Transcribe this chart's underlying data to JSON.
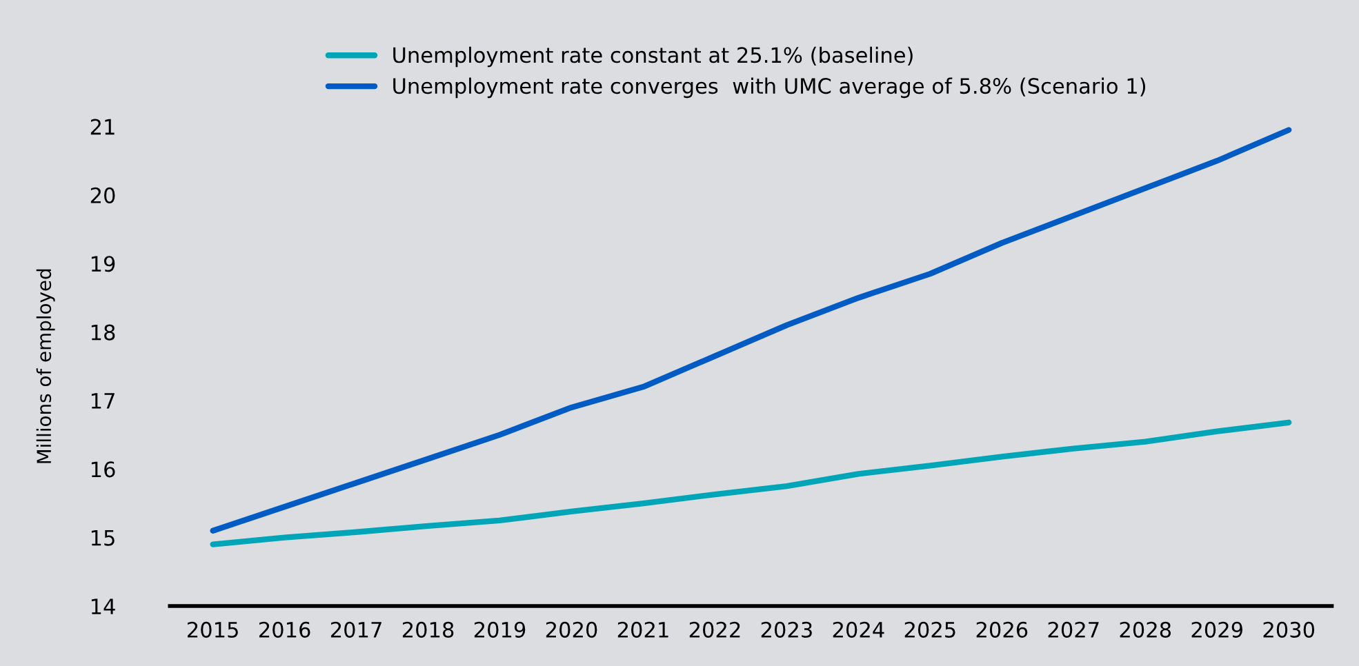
{
  "chart_data": {
    "type": "line",
    "ylabel": "Millions of employed",
    "categories": [
      "2015",
      "2016",
      "2017",
      "2018",
      "2019",
      "2020",
      "2021",
      "2022",
      "2023",
      "2024",
      "2025",
      "2026",
      "2027",
      "2028",
      "2029",
      "2030"
    ],
    "series": [
      {
        "name": "Unemployment rate constant at 25.1% (baseline)",
        "color": "#00a6b8",
        "values": [
          14.9,
          15.0,
          15.08,
          15.17,
          15.25,
          15.38,
          15.5,
          15.63,
          15.75,
          15.93,
          16.05,
          16.18,
          16.3,
          16.4,
          16.55,
          16.68
        ]
      },
      {
        "name": "Unemployment rate converges  with UMC average of 5.8% (Scenario 1)",
        "color": "#005cc4",
        "values": [
          15.1,
          15.45,
          15.8,
          16.15,
          16.5,
          16.9,
          17.2,
          17.65,
          18.1,
          18.5,
          18.85,
          19.3,
          19.7,
          20.1,
          20.5,
          20.95
        ]
      }
    ],
    "ylim": [
      14,
      21
    ],
    "yticks": [
      14,
      15,
      16,
      17,
      18,
      19,
      20,
      21
    ],
    "grid": false,
    "legend": "top",
    "marker": "none",
    "line_style": "solid"
  }
}
